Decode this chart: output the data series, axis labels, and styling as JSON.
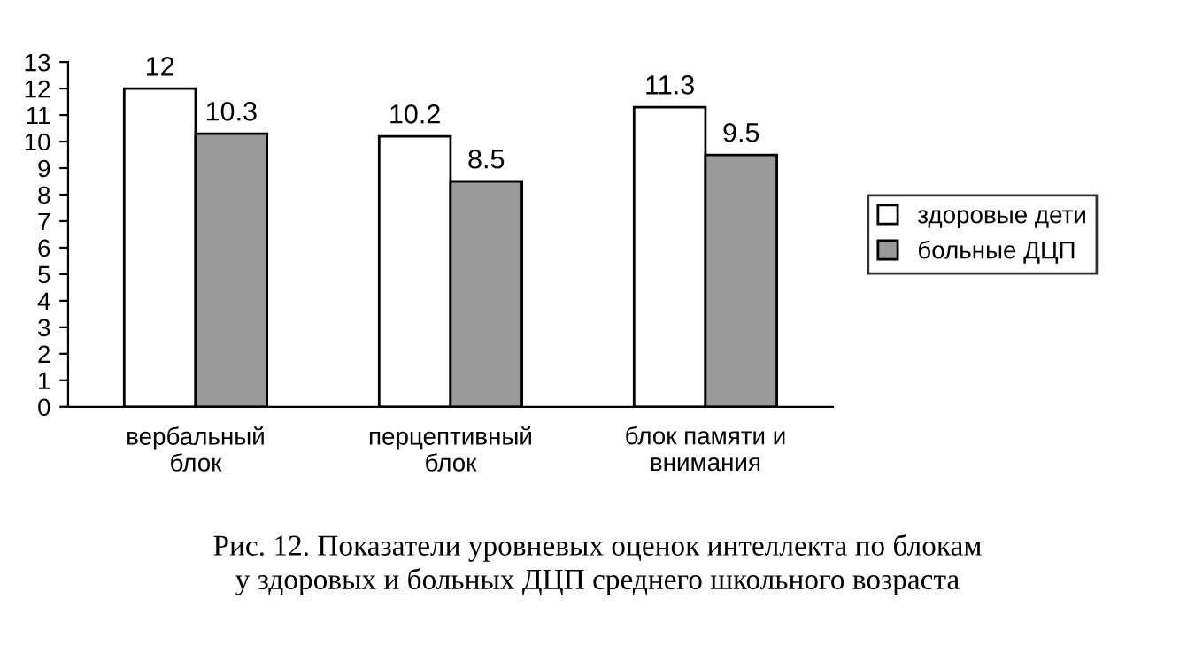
{
  "chart_data": {
    "type": "bar",
    "categories": [
      "вербальный\nблок",
      "перцептивный\nблок",
      "блок памяти и\nвнимания"
    ],
    "series": [
      {
        "name": "здоровые дети",
        "color": "#ffffff",
        "values": [
          12,
          10.2,
          11.3
        ]
      },
      {
        "name": "больные ДЦП",
        "color": "#9a9a9a",
        "values": [
          10.3,
          8.5,
          9.5
        ]
      }
    ],
    "ylim": [
      0,
      13
    ],
    "yticks": [
      0,
      1,
      2,
      3,
      4,
      5,
      6,
      7,
      8,
      9,
      10,
      11,
      12,
      13
    ],
    "data_labels": true,
    "legend": "right",
    "grid": false,
    "annotations": [
      "Рис. 12. Показатели уровневых оценок интеллекта по блокам\nу здоровых и больных ДЦП среднего школьного возраста"
    ]
  }
}
